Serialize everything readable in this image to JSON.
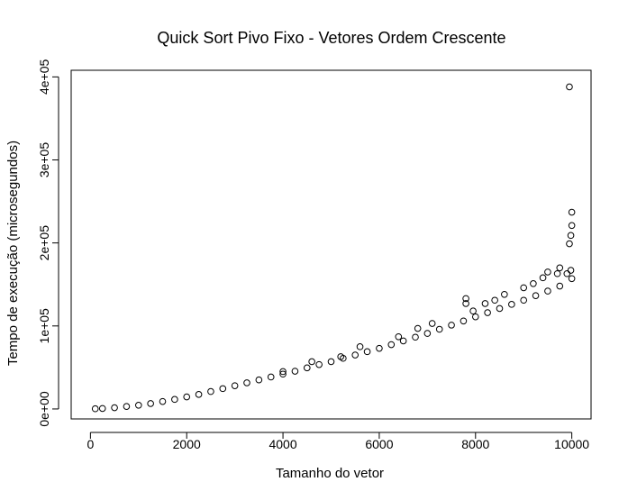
{
  "chart_data": {
    "type": "scatter",
    "title": "Quick Sort Pivo Fixo - Vetores Ordem Crescente",
    "xlabel": "Tamanho do vetor",
    "ylabel": "Tempo de execução (microsegundos)",
    "xlim": [
      -400,
      10400
    ],
    "ylim": [
      -12000,
      408000
    ],
    "x_ticks": [
      {
        "value": 0,
        "label": "0"
      },
      {
        "value": 2000,
        "label": "2000"
      },
      {
        "value": 4000,
        "label": "4000"
      },
      {
        "value": 6000,
        "label": "6000"
      },
      {
        "value": 8000,
        "label": "8000"
      },
      {
        "value": 10000,
        "label": "10000"
      }
    ],
    "y_ticks": [
      {
        "value": 0,
        "label": "0e+00"
      },
      {
        "value": 100000,
        "label": "1e+05"
      },
      {
        "value": 200000,
        "label": "2e+05"
      },
      {
        "value": 300000,
        "label": "3e+05"
      },
      {
        "value": 400000,
        "label": "4e+05"
      }
    ],
    "grid": false,
    "marker": "open-circle",
    "marker_color": "#000000",
    "series": [
      {
        "points": [
          [
            100,
            250
          ],
          [
            250,
            600
          ],
          [
            500,
            1500
          ],
          [
            750,
            3000
          ],
          [
            1000,
            4500
          ],
          [
            1250,
            6500
          ],
          [
            1500,
            9000
          ],
          [
            1750,
            11500
          ],
          [
            2000,
            14500
          ],
          [
            2250,
            17500
          ],
          [
            2500,
            21000
          ],
          [
            2750,
            24500
          ],
          [
            3000,
            28000
          ],
          [
            3250,
            31500
          ],
          [
            3500,
            35000
          ],
          [
            3750,
            38500
          ],
          [
            4000,
            42000
          ],
          [
            4250,
            45500
          ],
          [
            4500,
            49500
          ],
          [
            4750,
            53500
          ],
          [
            5000,
            57000
          ],
          [
            5250,
            61000
          ],
          [
            5500,
            65000
          ],
          [
            5750,
            69000
          ],
          [
            6000,
            73000
          ],
          [
            6250,
            77500
          ],
          [
            6500,
            82000
          ],
          [
            6750,
            86500
          ],
          [
            7000,
            91000
          ],
          [
            7250,
            96000
          ],
          [
            7500,
            101000
          ],
          [
            7750,
            106000
          ],
          [
            8000,
            111000
          ],
          [
            8250,
            116000
          ],
          [
            8500,
            121000
          ],
          [
            8750,
            126000
          ],
          [
            9000,
            131000
          ],
          [
            9250,
            136500
          ],
          [
            9500,
            142000
          ],
          [
            9750,
            148000
          ],
          [
            10000,
            157000
          ],
          [
            4000,
            45000
          ],
          [
            4600,
            57000
          ],
          [
            5200,
            63000
          ],
          [
            5600,
            75000
          ],
          [
            6400,
            87000
          ],
          [
            6800,
            97000
          ],
          [
            7100,
            103000
          ],
          [
            7800,
            133000
          ],
          [
            7800,
            127000
          ],
          [
            7950,
            118000
          ],
          [
            8200,
            127000
          ],
          [
            8400,
            131000
          ],
          [
            8600,
            138000
          ],
          [
            9000,
            146000
          ],
          [
            9200,
            151000
          ],
          [
            9400,
            158000
          ],
          [
            9500,
            165000
          ],
          [
            9700,
            163000
          ],
          [
            9750,
            170000
          ],
          [
            9900,
            163000
          ],
          [
            9980,
            167000
          ],
          [
            9950,
            388000
          ],
          [
            10000,
            237000
          ],
          [
            10000,
            221000
          ],
          [
            9980,
            209000
          ],
          [
            9950,
            199000
          ]
        ]
      }
    ]
  }
}
